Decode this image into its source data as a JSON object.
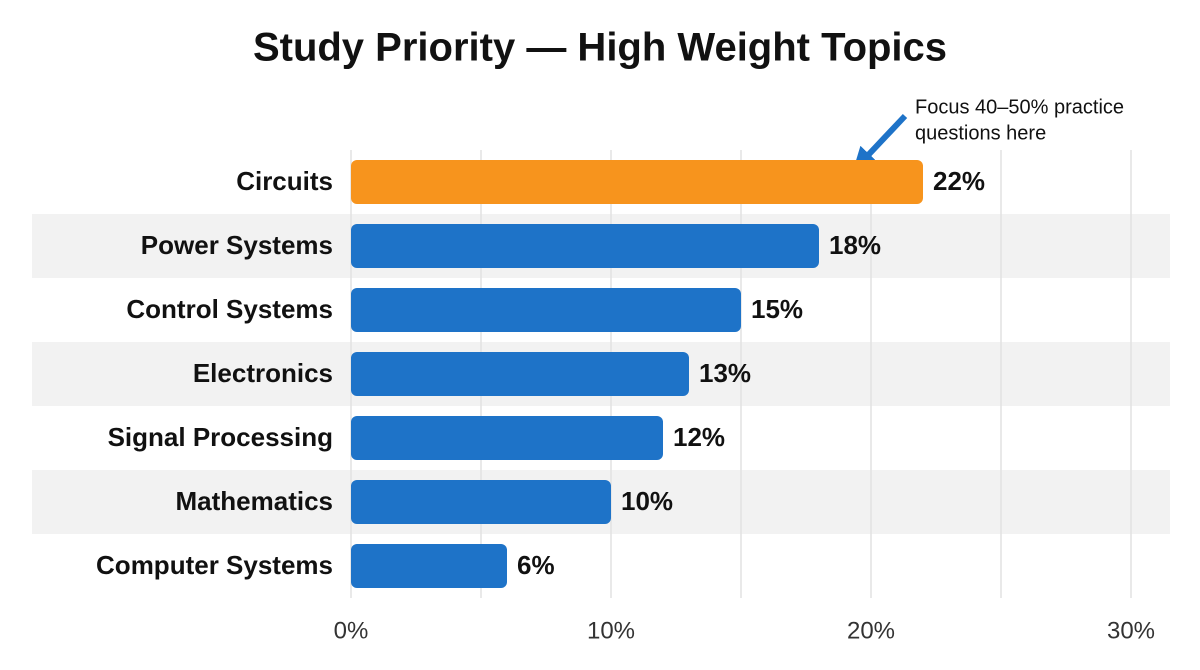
{
  "chart_data": {
    "type": "hbar",
    "title": "Study Priority — High Weight Topics",
    "categories": [
      "Circuits",
      "Power Systems",
      "Control Systems",
      "Electronics",
      "Signal Processing",
      "Mathematics",
      "Computer Systems"
    ],
    "values": [
      22,
      18,
      15,
      13,
      12,
      10,
      6
    ],
    "value_labels": [
      "22%",
      "18%",
      "15%",
      "13%",
      "12%",
      "10%",
      "6%"
    ],
    "colors": [
      "#f7941d",
      "#1e73c8",
      "#1e73c8",
      "#1e73c8",
      "#1e73c8",
      "#1e73c8",
      "#1e73c8"
    ],
    "xlim": [
      0,
      30
    ],
    "xticks": [
      {
        "value": 0,
        "label": "0%"
      },
      {
        "value": 10,
        "label": "10%"
      },
      {
        "value": 20,
        "label": "20%"
      },
      {
        "value": 30,
        "label": "30%"
      }
    ],
    "xminorticks": [
      5,
      15,
      25
    ],
    "grid": true,
    "annotation": [
      "Focus 40–50% practice",
      "questions here"
    ]
  }
}
